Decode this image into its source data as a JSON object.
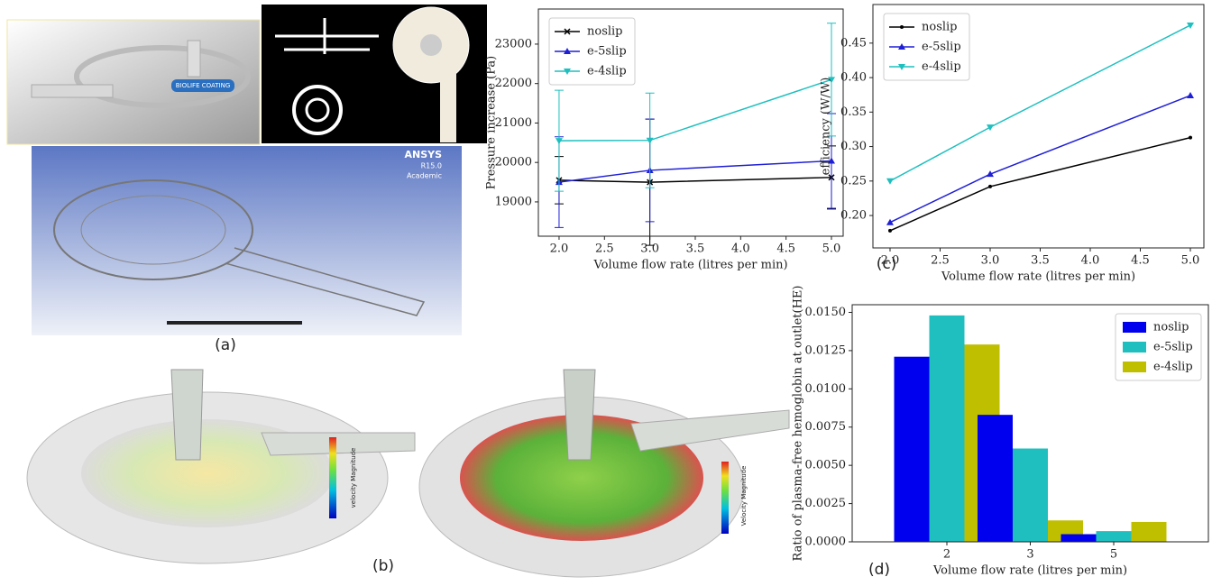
{
  "panels": {
    "a": "(a)",
    "b": "(b)",
    "c": "(c)",
    "d": "(d)",
    "ansys": "ANSYS",
    "ansys_version": "R15.0",
    "ansys_license": "Academic",
    "photo_label": "BIOLIFE COATING",
    "colorbar_1": "velocity Magnitude",
    "colorbar_2": "Velocity Magnitude"
  },
  "chart_data": [
    {
      "type": "line",
      "ylabel": "Pressure increase (Pa)",
      "xlabel": "Volume flow rate (litres per min)",
      "x": [
        2,
        3,
        5
      ],
      "xlim": [
        1.772,
        5.129
      ],
      "xticks": [
        {
          "value": 2,
          "label": "2.0"
        },
        {
          "value": 2.5,
          "label": "2.5"
        },
        {
          "value": 3,
          "label": "3.0"
        },
        {
          "value": 3.5,
          "label": "3.5"
        },
        {
          "value": 4,
          "label": "4.0"
        },
        {
          "value": 4.5,
          "label": "4.5"
        },
        {
          "value": 5,
          "label": "5.0"
        }
      ],
      "ylim": [
        18130,
        23890
      ],
      "yticks": [
        19000,
        20000,
        21000,
        22000,
        23000
      ],
      "legend": "upper left",
      "series": [
        {
          "name": "noslip",
          "color": "#000000",
          "marker": "x",
          "values": [
            19550,
            19500,
            19620
          ],
          "errors": [
            600,
            1600,
            800
          ]
        },
        {
          "name": "e-5slip",
          "color": "#1f1fd6",
          "marker": "^",
          "values": [
            19500,
            19800,
            20040
          ],
          "errors": [
            1150,
            1300,
            1200
          ]
        },
        {
          "name": "e-4slip",
          "color": "#1fbfbf",
          "marker": "v",
          "values": [
            20550,
            20560,
            22100
          ],
          "errors": [
            1280,
            1200,
            1430
          ]
        }
      ]
    },
    {
      "type": "line",
      "ylabel": "efficiency (W/W)",
      "xlabel": "Volume flow rate (litres per min)",
      "x": [
        2,
        3,
        5
      ],
      "xlim": [
        1.829,
        5.135
      ],
      "xticks": [
        {
          "value": 2,
          "label": "2.0"
        },
        {
          "value": 2.5,
          "label": "2.5"
        },
        {
          "value": 3,
          "label": "3.0"
        },
        {
          "value": 3.5,
          "label": "3.5"
        },
        {
          "value": 4,
          "label": "4.0"
        },
        {
          "value": 4.5,
          "label": "4.5"
        },
        {
          "value": 5,
          "label": "5.0"
        }
      ],
      "ylim": [
        0.153,
        0.506
      ],
      "yticks": [
        {
          "value": 0.2,
          "label": "0.20"
        },
        {
          "value": 0.25,
          "label": "0.25"
        },
        {
          "value": 0.3,
          "label": "0.30"
        },
        {
          "value": 0.35,
          "label": "0.35"
        },
        {
          "value": 0.4,
          "label": "0.40"
        },
        {
          "value": 0.45,
          "label": "0.45"
        }
      ],
      "legend": "upper left",
      "series": [
        {
          "name": "noslip",
          "color": "#000000",
          "marker": "o",
          "values": [
            0.178,
            0.242,
            0.313
          ]
        },
        {
          "name": "e-5slip",
          "color": "#1f1fd6",
          "marker": "^",
          "values": [
            0.19,
            0.26,
            0.374
          ]
        },
        {
          "name": "e-4slip",
          "color": "#1fbfbf",
          "marker": "v",
          "values": [
            0.25,
            0.328,
            0.476
          ]
        }
      ]
    },
    {
      "type": "bar",
      "ylabel": "Ratio of plasma-free hemoglobin at outlet(HE)",
      "xlabel": "Volume flow rate (litres per min)",
      "categories": [
        "2",
        "3",
        "5"
      ],
      "ylim": [
        0,
        0.0155
      ],
      "yticks": [
        {
          "value": 0,
          "label": "0.0000"
        },
        {
          "value": 0.0025,
          "label": "0.0025"
        },
        {
          "value": 0.005,
          "label": "0.0050"
        },
        {
          "value": 0.0075,
          "label": "0.0075"
        },
        {
          "value": 0.01,
          "label": "0.0100"
        },
        {
          "value": 0.0125,
          "label": "0.0125"
        },
        {
          "value": 0.015,
          "label": "0.0150"
        }
      ],
      "legend": "upper right",
      "series": [
        {
          "name": "noslip",
          "color": "#0000ee",
          "values": [
            0.0121,
            0.0083,
            0.0005
          ]
        },
        {
          "name": "e-5slip",
          "color": "#1fbfbf",
          "values": [
            0.0148,
            0.0061,
            0.0007
          ]
        },
        {
          "name": "e-4slip",
          "color": "#bfbf00",
          "values": [
            0.0129,
            0.0014,
            0.0013
          ]
        }
      ]
    }
  ]
}
